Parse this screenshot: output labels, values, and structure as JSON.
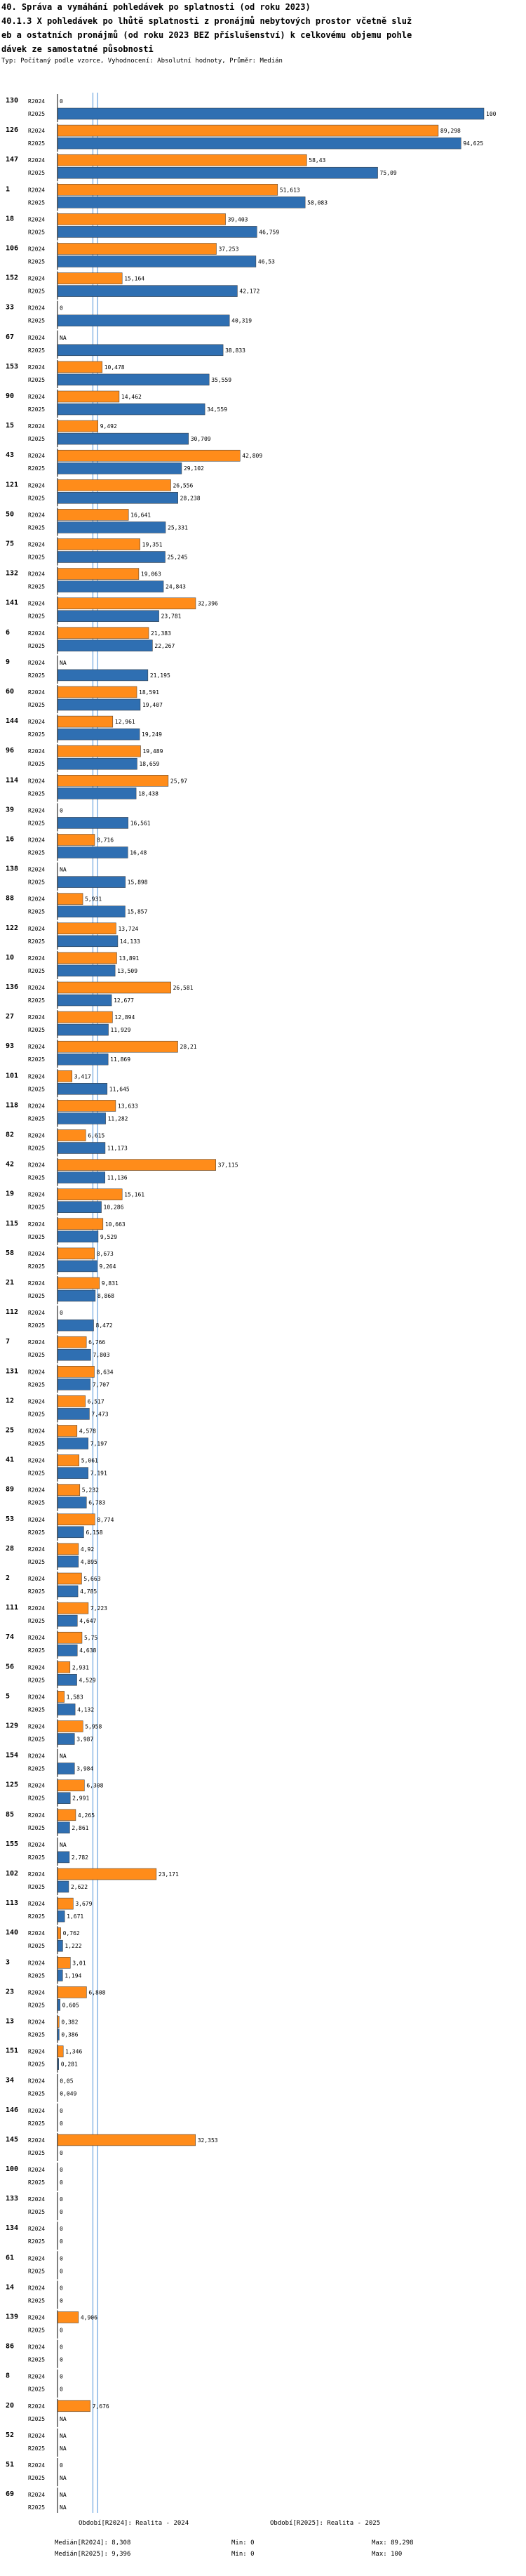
{
  "header": {
    "title1": "40. Správa a vymáhání pohledávek po splatnosti (od roku 2023)",
    "title2": "40.1.3 X pohledávek po lhůtě splatnosti z pronájmů nebytových prostor včetně služ",
    "title3": "eb a ostatních pronájmů (od roku 2023 BEZ příslušenství) k celkovému objemu pohle",
    "title4": "dávek ze samostatné působnosti",
    "subtitle": "Typ: Počítaný podle vzorce, Vyhodnocení: Absolutní hodnoty, Průměr: Medián"
  },
  "legend": {
    "series1_label": "Období[R2024]: Realita - 2024",
    "series2_label": "Období[R2025]: Realita - 2025",
    "median1": "Medián[R2024]: 8,308",
    "median2": "Medián[R2025]: 9,396",
    "min1": "Min: 0",
    "min2": "Min: 0",
    "max1": "Max: 89,298",
    "max2": "Max: 100"
  },
  "colors": {
    "r2024": "#ff8c1a",
    "r2025": "#2f6fb2",
    "median": "#4a90d9",
    "border": "#555555"
  },
  "chart_data": {
    "type": "bar",
    "orientation": "horizontal",
    "xlim": [
      0,
      100
    ],
    "series_names": [
      "R2024",
      "R2025"
    ],
    "median_r2024": 8.308,
    "median_r2025": 9.396,
    "groups": [
      {
        "id": "130",
        "r2024": "0",
        "r2025": "100"
      },
      {
        "id": "126",
        "r2024": "89,298",
        "r2025": "94,625"
      },
      {
        "id": "147",
        "r2024": "58,43",
        "r2025": "75,09"
      },
      {
        "id": "1",
        "r2024": "51,613",
        "r2025": "58,083"
      },
      {
        "id": "18",
        "r2024": "39,403",
        "r2025": "46,759"
      },
      {
        "id": "106",
        "r2024": "37,253",
        "r2025": "46,53"
      },
      {
        "id": "152",
        "r2024": "15,164",
        "r2025": "42,172"
      },
      {
        "id": "33",
        "r2024": "0",
        "r2025": "40,319"
      },
      {
        "id": "67",
        "r2024": "NA",
        "r2025": "38,833"
      },
      {
        "id": "153",
        "r2024": "10,478",
        "r2025": "35,559"
      },
      {
        "id": "90",
        "r2024": "14,462",
        "r2025": "34,559"
      },
      {
        "id": "15",
        "r2024": "9,492",
        "r2025": "30,709"
      },
      {
        "id": "43",
        "r2024": "42,809",
        "r2025": "29,102"
      },
      {
        "id": "121",
        "r2024": "26,556",
        "r2025": "28,238"
      },
      {
        "id": "50",
        "r2024": "16,641",
        "r2025": "25,331"
      },
      {
        "id": "75",
        "r2024": "19,351",
        "r2025": "25,245"
      },
      {
        "id": "132",
        "r2024": "19,063",
        "r2025": "24,843"
      },
      {
        "id": "141",
        "r2024": "32,396",
        "r2025": "23,781"
      },
      {
        "id": "6",
        "r2024": "21,383",
        "r2025": "22,267"
      },
      {
        "id": "9",
        "r2024": "NA",
        "r2025": "21,195"
      },
      {
        "id": "60",
        "r2024": "18,591",
        "r2025": "19,407"
      },
      {
        "id": "144",
        "r2024": "12,961",
        "r2025": "19,249"
      },
      {
        "id": "96",
        "r2024": "19,489",
        "r2025": "18,659"
      },
      {
        "id": "114",
        "r2024": "25,97",
        "r2025": "18,438"
      },
      {
        "id": "39",
        "r2024": "0",
        "r2025": "16,561"
      },
      {
        "id": "16",
        "r2024": "8,716",
        "r2025": "16,48"
      },
      {
        "id": "138",
        "r2024": "NA",
        "r2025": "15,898"
      },
      {
        "id": "88",
        "r2024": "5,931",
        "r2025": "15,857"
      },
      {
        "id": "122",
        "r2024": "13,724",
        "r2025": "14,133"
      },
      {
        "id": "10",
        "r2024": "13,891",
        "r2025": "13,509"
      },
      {
        "id": "136",
        "r2024": "26,581",
        "r2025": "12,677"
      },
      {
        "id": "27",
        "r2024": "12,894",
        "r2025": "11,929"
      },
      {
        "id": "93",
        "r2024": "28,21",
        "r2025": "11,869"
      },
      {
        "id": "101",
        "r2024": "3,417",
        "r2025": "11,645"
      },
      {
        "id": "118",
        "r2024": "13,633",
        "r2025": "11,282"
      },
      {
        "id": "82",
        "r2024": "6,615",
        "r2025": "11,173"
      },
      {
        "id": "42",
        "r2024": "37,115",
        "r2025": "11,136"
      },
      {
        "id": "19",
        "r2024": "15,161",
        "r2025": "10,286"
      },
      {
        "id": "115",
        "r2024": "10,663",
        "r2025": "9,529"
      },
      {
        "id": "58",
        "r2024": "8,673",
        "r2025": "9,264"
      },
      {
        "id": "21",
        "r2024": "9,831",
        "r2025": "8,868"
      },
      {
        "id": "112",
        "r2024": "0",
        "r2025": "8,472"
      },
      {
        "id": "7",
        "r2024": "6,766",
        "r2025": "7,803"
      },
      {
        "id": "131",
        "r2024": "8,634",
        "r2025": "7,707"
      },
      {
        "id": "12",
        "r2024": "6,517",
        "r2025": "7,473"
      },
      {
        "id": "25",
        "r2024": "4,578",
        "r2025": "7,197"
      },
      {
        "id": "41",
        "r2024": "5,061",
        "r2025": "7,191"
      },
      {
        "id": "89",
        "r2024": "5,232",
        "r2025": "6,783"
      },
      {
        "id": "53",
        "r2024": "8,774",
        "r2025": "6,158"
      },
      {
        "id": "28",
        "r2024": "4,92",
        "r2025": "4,895"
      },
      {
        "id": "2",
        "r2024": "5,663",
        "r2025": "4,785"
      },
      {
        "id": "111",
        "r2024": "7,223",
        "r2025": "4,647"
      },
      {
        "id": "74",
        "r2024": "5,75",
        "r2025": "4,638"
      },
      {
        "id": "56",
        "r2024": "2,931",
        "r2025": "4,529"
      },
      {
        "id": "5",
        "r2024": "1,583",
        "r2025": "4,132"
      },
      {
        "id": "129",
        "r2024": "5,958",
        "r2025": "3,987"
      },
      {
        "id": "154",
        "r2024": "NA",
        "r2025": "3,984"
      },
      {
        "id": "125",
        "r2024": "6,308",
        "r2025": "2,991"
      },
      {
        "id": "85",
        "r2024": "4,265",
        "r2025": "2,861"
      },
      {
        "id": "155",
        "r2024": "NA",
        "r2025": "2,782"
      },
      {
        "id": "102",
        "r2024": "23,171",
        "r2025": "2,622"
      },
      {
        "id": "113",
        "r2024": "3,679",
        "r2025": "1,671"
      },
      {
        "id": "140",
        "r2024": "0,762",
        "r2025": "1,222"
      },
      {
        "id": "3",
        "r2024": "3,01",
        "r2025": "1,194"
      },
      {
        "id": "23",
        "r2024": "6,808",
        "r2025": "0,605"
      },
      {
        "id": "13",
        "r2024": "0,382",
        "r2025": "0,386"
      },
      {
        "id": "151",
        "r2024": "1,346",
        "r2025": "0,281"
      },
      {
        "id": "34",
        "r2024": "0,05",
        "r2025": "0,049"
      },
      {
        "id": "146",
        "r2024": "0",
        "r2025": "0"
      },
      {
        "id": "145",
        "r2024": "32,353",
        "r2025": "0"
      },
      {
        "id": "100",
        "r2024": "0",
        "r2025": "0"
      },
      {
        "id": "133",
        "r2024": "0",
        "r2025": "0"
      },
      {
        "id": "134",
        "r2024": "0",
        "r2025": "0"
      },
      {
        "id": "61",
        "r2024": "0",
        "r2025": "0"
      },
      {
        "id": "14",
        "r2024": "0",
        "r2025": "0"
      },
      {
        "id": "139",
        "r2024": "4,906",
        "r2025": "0"
      },
      {
        "id": "86",
        "r2024": "0",
        "r2025": "0"
      },
      {
        "id": "8",
        "r2024": "0",
        "r2025": "0"
      },
      {
        "id": "20",
        "r2024": "7,676",
        "r2025": "NA"
      },
      {
        "id": "52",
        "r2024": "NA",
        "r2025": "NA"
      },
      {
        "id": "51",
        "r2024": "0",
        "r2025": "NA"
      },
      {
        "id": "69",
        "r2024": "NA",
        "r2025": "NA"
      }
    ]
  }
}
